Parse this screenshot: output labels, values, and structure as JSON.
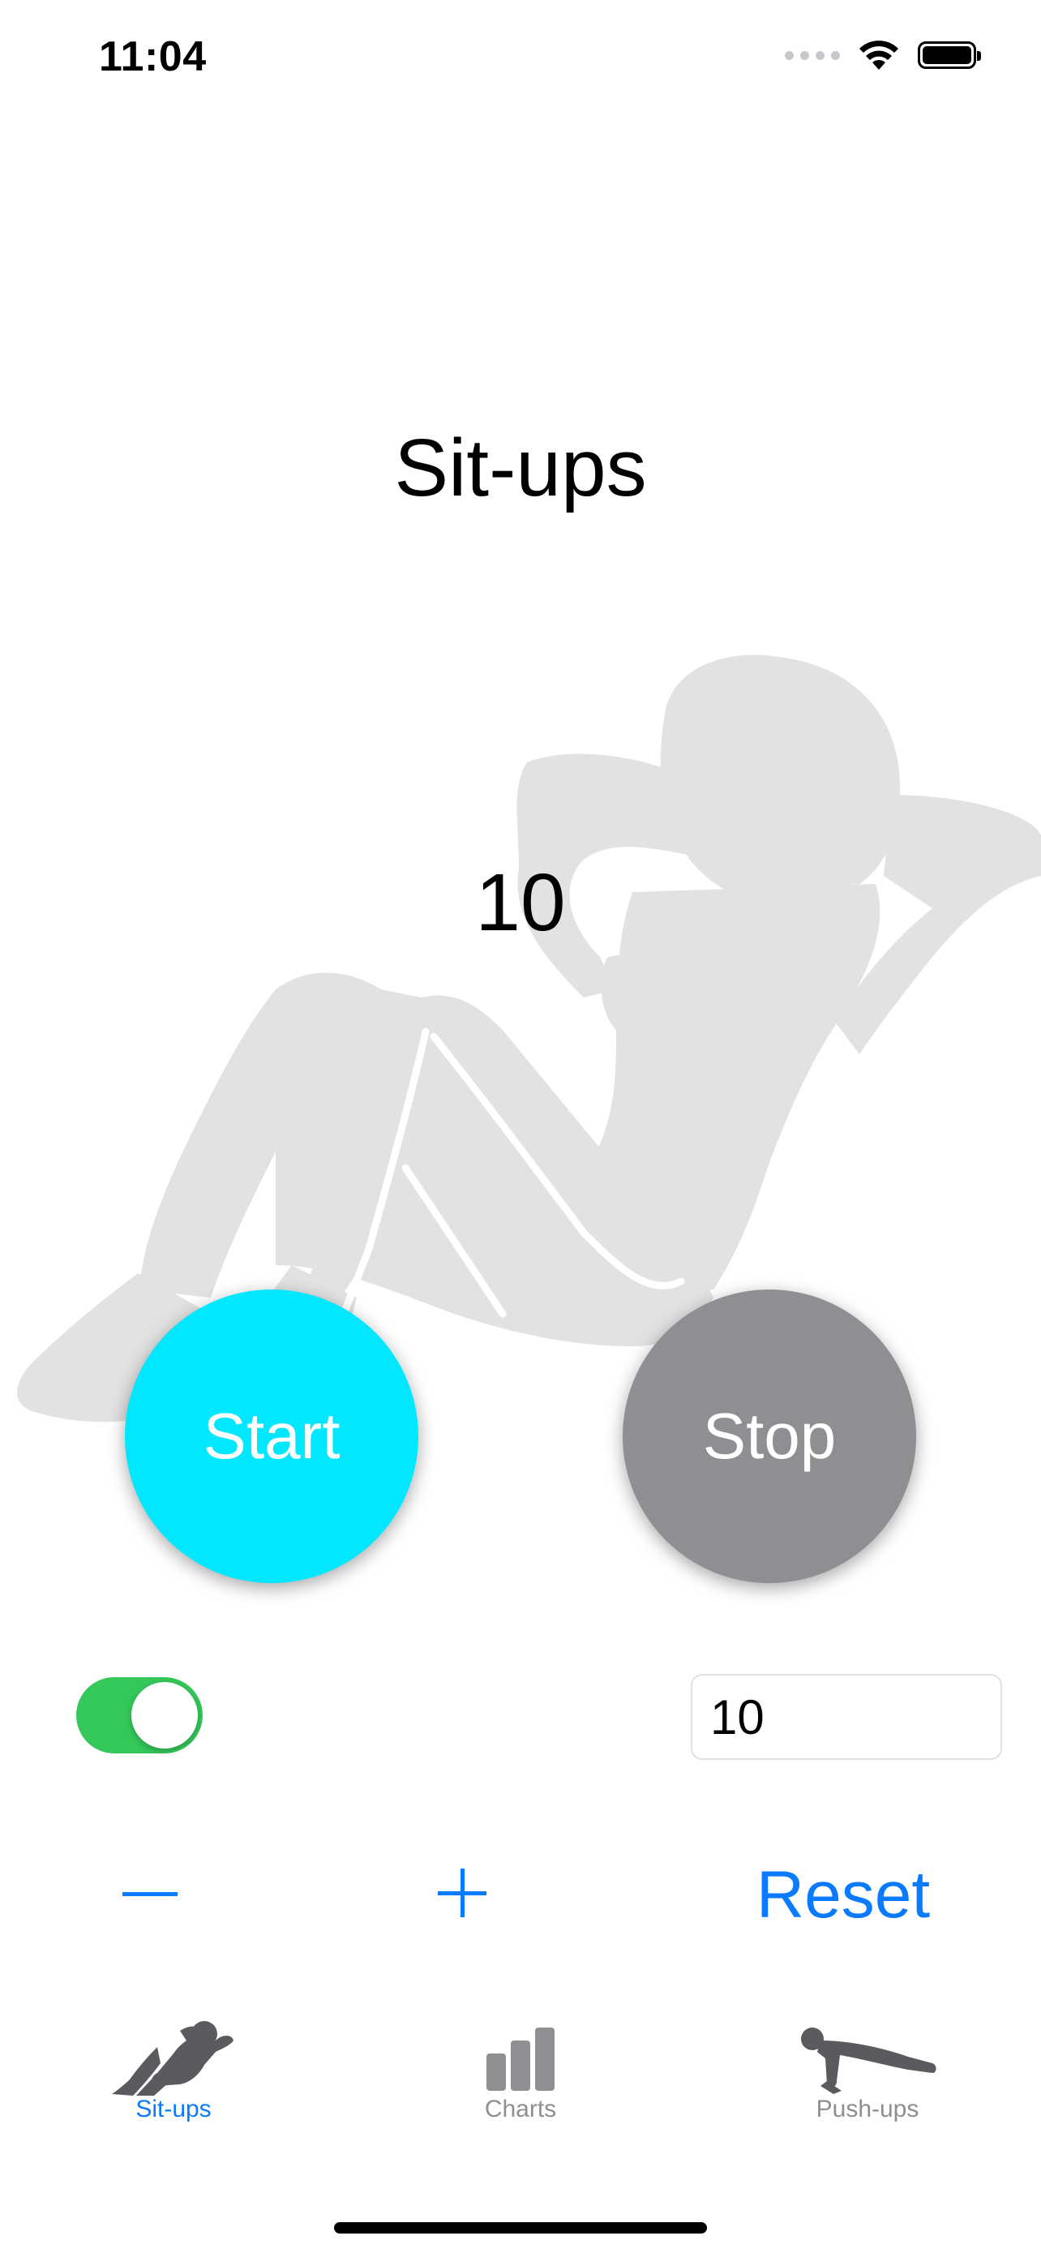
{
  "status_bar": {
    "time": "11:04"
  },
  "screen": {
    "title": "Sit-ups",
    "counter": "10"
  },
  "controls": {
    "start_label": "Start",
    "stop_label": "Stop",
    "toggle_on": true,
    "reps_value": "10",
    "reset_label": "Reset"
  },
  "tabbar": {
    "items": [
      {
        "label": "Sit-ups",
        "icon": "situps-icon",
        "active": true
      },
      {
        "label": "Charts",
        "icon": "bar-chart-icon",
        "active": false
      },
      {
        "label": "Push-ups",
        "icon": "pushups-icon",
        "active": false
      }
    ]
  },
  "colors": {
    "start": "#00e7ff",
    "stop": "#8e8e93",
    "accent": "#0a7aff",
    "toggle_on": "#34c759"
  }
}
